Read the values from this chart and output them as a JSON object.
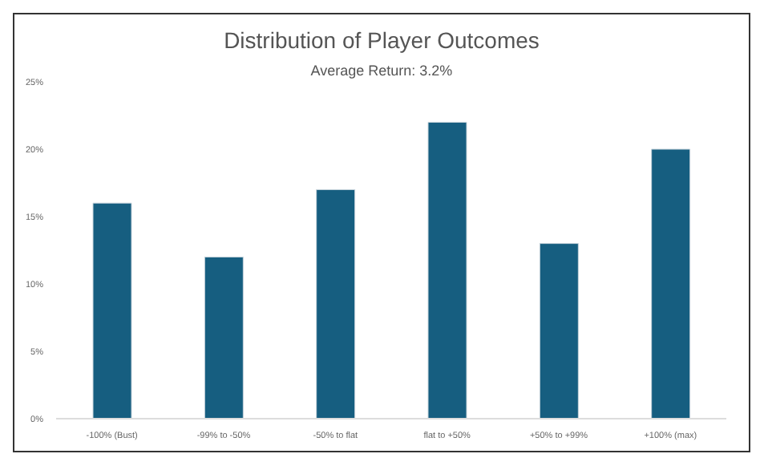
{
  "chart_data": {
    "type": "bar",
    "title": "Distribution of Player Outcomes",
    "subtitle": "Average Return: 3.2%",
    "categories": [
      "-100% (Bust)",
      "-99% to -50%",
      "-50% to flat",
      "flat to +50%",
      "+50% to +99%",
      "+100% (max)"
    ],
    "values": [
      16,
      12,
      17,
      22,
      13,
      20
    ],
    "color": "#165e80",
    "ylim": [
      0,
      25
    ],
    "yticks": [
      {
        "value": 0,
        "label": "0%"
      },
      {
        "value": 5,
        "label": "5%"
      },
      {
        "value": 10,
        "label": "10%"
      },
      {
        "value": 15,
        "label": "15%"
      },
      {
        "value": 20,
        "label": "20%"
      },
      {
        "value": 25,
        "label": "25%"
      }
    ],
    "grid": false
  }
}
